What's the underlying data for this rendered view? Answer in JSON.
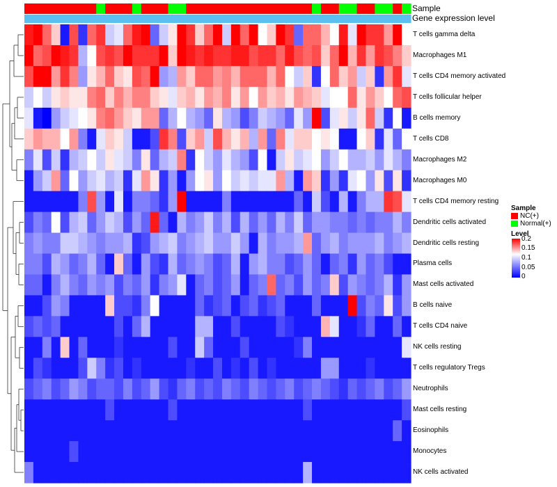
{
  "chart_data": {
    "type": "heatmap",
    "title": "",
    "annotation_titles": [
      "Sample",
      "Gene expression level"
    ],
    "rows": [
      "T cells gamma delta",
      "Macrophages M1",
      "T cells CD4 memory activated",
      "T cells follicular helper",
      "B cells memory",
      "T cells CD8",
      "Macrophages M2",
      "Macrophages M0",
      "T cells CD4 memory resting",
      "Dendritic cells activated",
      "Dendritic cells resting",
      "Plasma cells",
      "Mast cells activated",
      "B cells naive",
      "T cells CD4 naive",
      "NK cells resting",
      "T cells regulatory  Tregs",
      "Neutrophils",
      "Mast cells resting",
      "Eosinophils",
      "Monocytes",
      "NK cells activated"
    ],
    "sample_groups": [
      "NC",
      "NC",
      "NC",
      "NC",
      "NC",
      "NC",
      "NC",
      "NC",
      "Normal",
      "NC",
      "NC",
      "NC",
      "Normal",
      "NC",
      "NC",
      "NC",
      "Normal",
      "Normal",
      "NC",
      "NC",
      "NC",
      "NC",
      "NC",
      "NC",
      "NC",
      "NC",
      "NC",
      "NC",
      "NC",
      "NC",
      "NC",
      "NC",
      "Normal",
      "NC",
      "NC",
      "Normal",
      "Normal",
      "NC",
      "NC",
      "Normal",
      "Normal",
      "NC",
      "Normal"
    ],
    "color_scale": {
      "min": 0,
      "max": 0.2,
      "colors": [
        "#0000ff",
        "#ffffff",
        "#ff0000"
      ]
    },
    "values": [
      [
        0.19,
        0.2,
        0.16,
        0.12,
        0.01,
        0.17,
        0.02,
        0.16,
        0.18,
        0.08,
        0.09,
        0.16,
        0.19,
        0.2,
        0.04,
        0.08,
        0.11,
        0.2,
        0.18,
        0.12,
        0.16,
        0.2,
        0.08,
        0.2,
        0.16,
        0.2,
        0.1,
        0.12,
        0.2,
        0.18,
        0.04,
        0.16,
        0.16,
        0.13,
        0.1,
        0.19,
        0.09,
        0.2,
        0.18,
        0.18,
        0.14,
        0.2,
        0.1
      ],
      [
        0.2,
        0.16,
        0.17,
        0.2,
        0.19,
        0.18,
        0.07,
        0.1,
        0.17,
        0.18,
        0.17,
        0.2,
        0.18,
        0.18,
        0.18,
        0.2,
        0.12,
        0.2,
        0.19,
        0.18,
        0.19,
        0.18,
        0.18,
        0.19,
        0.19,
        0.17,
        0.18,
        0.18,
        0.16,
        0.19,
        0.17,
        0.16,
        0.17,
        0.12,
        0.16,
        0.2,
        0.13,
        0.18,
        0.14,
        0.18,
        0.17,
        0.15,
        0.12
      ],
      [
        0.17,
        0.2,
        0.2,
        0.14,
        0.18,
        0.15,
        0.06,
        0.11,
        0.13,
        0.16,
        0.12,
        0.11,
        0.17,
        0.16,
        0.2,
        0.06,
        0.07,
        0.14,
        0.12,
        0.16,
        0.16,
        0.14,
        0.15,
        0.13,
        0.16,
        0.16,
        0.16,
        0.13,
        0.16,
        0.1,
        0.08,
        0.12,
        0.02,
        0.1,
        0.16,
        0.12,
        0.14,
        0.08,
        0.12,
        0.02,
        0.14,
        0.18,
        0.09
      ],
      [
        0.08,
        0.1,
        0.08,
        0.11,
        0.12,
        0.11,
        0.11,
        0.15,
        0.16,
        0.12,
        0.15,
        0.13,
        0.15,
        0.15,
        0.12,
        0.11,
        0.09,
        0.12,
        0.13,
        0.11,
        0.14,
        0.13,
        0.15,
        0.11,
        0.14,
        0.1,
        0.14,
        0.12,
        0.13,
        0.11,
        0.14,
        0.13,
        0.12,
        0.09,
        0.1,
        0.1,
        0.16,
        0.11,
        0.14,
        0.12,
        0.1,
        0.16,
        0.17
      ],
      [
        0.09,
        0.01,
        0.0,
        0.06,
        0.08,
        0.09,
        0.1,
        0.11,
        0.15,
        0.16,
        0.14,
        0.12,
        0.11,
        0.14,
        0.14,
        0.04,
        0.07,
        0.1,
        0.07,
        0.06,
        0.04,
        0.11,
        0.07,
        0.06,
        0.03,
        0.05,
        0.08,
        0.07,
        0.06,
        0.04,
        0.09,
        0.06,
        0.2,
        0.03,
        0.09,
        0.11,
        0.08,
        0.11,
        0.16,
        0.08,
        0.02,
        0.1,
        0.01
      ],
      [
        0.12,
        0.14,
        0.13,
        0.13,
        0.1,
        0.14,
        0.05,
        0.01,
        0.09,
        0.12,
        0.11,
        0.08,
        0.01,
        0.01,
        0.03,
        0.18,
        0.15,
        0.03,
        0.12,
        0.14,
        0.08,
        0.17,
        0.13,
        0.11,
        0.13,
        0.07,
        0.14,
        0.04,
        0.15,
        0.09,
        0.12,
        0.12,
        0.1,
        0.11,
        0.1,
        0.01,
        0.01,
        0.1,
        0.12,
        0.02,
        0.09,
        0.04,
        0.1
      ],
      [
        0.05,
        0.09,
        0.03,
        0.08,
        0.02,
        0.07,
        0.08,
        0.1,
        0.08,
        0.11,
        0.09,
        0.08,
        0.05,
        0.11,
        0.04,
        0.07,
        0.08,
        0.15,
        0.02,
        0.1,
        0.08,
        0.06,
        0.09,
        0.07,
        0.06,
        0.03,
        0.1,
        0.01,
        0.08,
        0.11,
        0.08,
        0.09,
        0.1,
        0.06,
        0.08,
        0.1,
        0.07,
        0.07,
        0.08,
        0.06,
        0.09,
        0.07,
        0.05
      ],
      [
        0.01,
        0.06,
        0.08,
        0.14,
        0.04,
        0.1,
        0.06,
        0.08,
        0.09,
        0.07,
        0.08,
        0.02,
        0.09,
        0.14,
        0.11,
        0.02,
        0.06,
        0.01,
        0.06,
        0.1,
        0.11,
        0.06,
        0.1,
        0.08,
        0.09,
        0.08,
        0.09,
        0.09,
        0.14,
        0.07,
        0.01,
        0.14,
        0.12,
        0.02,
        0.06,
        0.02,
        0.09,
        0.1,
        0.06,
        0.11,
        0.03,
        0.11,
        0.02
      ],
      [
        0.01,
        0.01,
        0.01,
        0.01,
        0.01,
        0.01,
        0.05,
        0.17,
        0.06,
        0.01,
        0.09,
        0.01,
        0.05,
        0.05,
        0.04,
        0.02,
        0.06,
        0.2,
        0.01,
        0.01,
        0.01,
        0.01,
        0.05,
        0.01,
        0.01,
        0.01,
        0.01,
        0.01,
        0.01,
        0.01,
        0.04,
        0.01,
        0.08,
        0.03,
        0.01,
        0.07,
        0.01,
        0.05,
        0.07,
        0.07,
        0.18,
        0.17,
        0.09
      ],
      [
        0.03,
        0.05,
        0.04,
        0.1,
        0.03,
        0.07,
        0.08,
        0.04,
        0.06,
        0.08,
        0.07,
        0.03,
        0.06,
        0.04,
        0.19,
        0.04,
        0.01,
        0.07,
        0.05,
        0.06,
        0.08,
        0.05,
        0.07,
        0.03,
        0.07,
        0.04,
        0.06,
        0.04,
        0.07,
        0.05,
        0.08,
        0.04,
        0.06,
        0.06,
        0.05,
        0.05,
        0.04,
        0.05,
        0.04,
        0.05,
        0.05,
        0.07,
        0.05
      ],
      [
        0.05,
        0.06,
        0.05,
        0.05,
        0.08,
        0.08,
        0.07,
        0.06,
        0.05,
        0.06,
        0.06,
        0.07,
        0.02,
        0.03,
        0.06,
        0.07,
        0.08,
        0.05,
        0.06,
        0.07,
        0.08,
        0.06,
        0.06,
        0.08,
        0.06,
        0.01,
        0.07,
        0.05,
        0.06,
        0.06,
        0.07,
        0.14,
        0.04,
        0.06,
        0.07,
        0.05,
        0.06,
        0.06,
        0.06,
        0.07,
        0.05,
        0.06,
        0.07
      ],
      [
        0.05,
        0.05,
        0.03,
        0.07,
        0.06,
        0.04,
        0.05,
        0.07,
        0.04,
        0.01,
        0.12,
        0.04,
        0.01,
        0.06,
        0.03,
        0.02,
        0.07,
        0.04,
        0.05,
        0.06,
        0.05,
        0.03,
        0.04,
        0.07,
        0.01,
        0.06,
        0.07,
        0.05,
        0.05,
        0.03,
        0.04,
        0.06,
        0.04,
        0.01,
        0.04,
        0.05,
        0.02,
        0.06,
        0.04,
        0.05,
        0.03,
        0.01,
        0.01
      ],
      [
        0.04,
        0.04,
        0.01,
        0.05,
        0.07,
        0.05,
        0.04,
        0.06,
        0.05,
        0.06,
        0.03,
        0.05,
        0.04,
        0.06,
        0.02,
        0.05,
        0.06,
        0.09,
        0.01,
        0.04,
        0.05,
        0.03,
        0.04,
        0.06,
        0.01,
        0.04,
        0.05,
        0.16,
        0.04,
        0.05,
        0.03,
        0.06,
        0.04,
        0.05,
        0.12,
        0.03,
        0.06,
        0.05,
        0.04,
        0.05,
        0.07,
        0.02,
        0.06
      ],
      [
        0.01,
        0.01,
        0.03,
        0.06,
        0.05,
        0.01,
        0.01,
        0.01,
        0.01,
        0.12,
        0.03,
        0.03,
        0.02,
        0.05,
        0.1,
        0.01,
        0.01,
        0.01,
        0.01,
        0.04,
        0.02,
        0.03,
        0.04,
        0.01,
        0.03,
        0.04,
        0.02,
        0.03,
        0.04,
        0.01,
        0.01,
        0.01,
        0.04,
        0.01,
        0.01,
        0.01,
        0.2,
        0.03,
        0.05,
        0.04,
        0.11,
        0.03,
        0.06
      ],
      [
        0.03,
        0.04,
        0.03,
        0.04,
        0.01,
        0.01,
        0.01,
        0.01,
        0.01,
        0.01,
        0.03,
        0.01,
        0.04,
        0.07,
        0.01,
        0.01,
        0.01,
        0.01,
        0.01,
        0.07,
        0.07,
        0.01,
        0.01,
        0.03,
        0.01,
        0.01,
        0.01,
        0.01,
        0.03,
        0.02,
        0.01,
        0.01,
        0.01,
        0.13,
        0.09,
        0.01,
        0.01,
        0.02,
        0.04,
        0.01,
        0.01,
        0.04,
        0.01
      ],
      [
        0.01,
        0.01,
        0.05,
        0.01,
        0.12,
        0.01,
        0.04,
        0.01,
        0.01,
        0.01,
        0.02,
        0.01,
        0.01,
        0.01,
        0.01,
        0.01,
        0.03,
        0.01,
        0.01,
        0.08,
        0.04,
        0.01,
        0.01,
        0.01,
        0.03,
        0.01,
        0.01,
        0.01,
        0.01,
        0.01,
        0.02,
        0.05,
        0.01,
        0.01,
        0.01,
        0.01,
        0.01,
        0.01,
        0.01,
        0.01,
        0.01,
        0.01,
        0.09
      ],
      [
        0.01,
        0.03,
        0.02,
        0.01,
        0.01,
        0.01,
        0.03,
        0.08,
        0.05,
        0.02,
        0.03,
        0.01,
        0.02,
        0.01,
        0.01,
        0.01,
        0.01,
        0.01,
        0.02,
        0.01,
        0.01,
        0.03,
        0.01,
        0.02,
        0.01,
        0.03,
        0.01,
        0.02,
        0.01,
        0.01,
        0.01,
        0.01,
        0.01,
        0.06,
        0.06,
        0.01,
        0.01,
        0.01,
        0.02,
        0.01,
        0.01,
        0.01,
        0.01
      ],
      [
        0.03,
        0.04,
        0.05,
        0.03,
        0.04,
        0.06,
        0.05,
        0.03,
        0.04,
        0.04,
        0.03,
        0.05,
        0.03,
        0.04,
        0.06,
        0.03,
        0.02,
        0.04,
        0.05,
        0.03,
        0.04,
        0.03,
        0.05,
        0.04,
        0.03,
        0.05,
        0.04,
        0.03,
        0.04,
        0.05,
        0.03,
        0.04,
        0.05,
        0.04,
        0.03,
        0.02,
        0.04,
        0.03,
        0.04,
        0.05,
        0.03,
        0.04,
        0.06
      ],
      [
        0.01,
        0.01,
        0.01,
        0.01,
        0.01,
        0.01,
        0.01,
        0.01,
        0.01,
        0.03,
        0.01,
        0.01,
        0.01,
        0.01,
        0.01,
        0.01,
        0.03,
        0.01,
        0.01,
        0.01,
        0.01,
        0.01,
        0.01,
        0.01,
        0.01,
        0.01,
        0.01,
        0.01,
        0.01,
        0.01,
        0.01,
        0.03,
        0.01,
        0.01,
        0.01,
        0.01,
        0.01,
        0.01,
        0.01,
        0.01,
        0.01,
        0.01,
        0.03
      ],
      [
        0.01,
        0.01,
        0.01,
        0.01,
        0.01,
        0.01,
        0.01,
        0.01,
        0.01,
        0.01,
        0.01,
        0.01,
        0.01,
        0.01,
        0.01,
        0.01,
        0.01,
        0.01,
        0.01,
        0.01,
        0.01,
        0.01,
        0.01,
        0.01,
        0.01,
        0.01,
        0.01,
        0.01,
        0.01,
        0.01,
        0.01,
        0.01,
        0.01,
        0.01,
        0.01,
        0.01,
        0.01,
        0.01,
        0.01,
        0.01,
        0.01,
        0.04,
        0.01
      ],
      [
        0.01,
        0.01,
        0.01,
        0.01,
        0.01,
        0.03,
        0.01,
        0.01,
        0.01,
        0.01,
        0.01,
        0.01,
        0.01,
        0.01,
        0.01,
        0.01,
        0.01,
        0.01,
        0.01,
        0.01,
        0.01,
        0.01,
        0.01,
        0.01,
        0.01,
        0.01,
        0.01,
        0.01,
        0.01,
        0.01,
        0.01,
        0.01,
        0.01,
        0.01,
        0.01,
        0.01,
        0.01,
        0.01,
        0.01,
        0.01,
        0.01,
        0.01,
        0.01
      ],
      [
        0.05,
        0.01,
        0.01,
        0.01,
        0.01,
        0.01,
        0.01,
        0.01,
        0.01,
        0.01,
        0.01,
        0.01,
        0.01,
        0.01,
        0.01,
        0.01,
        0.01,
        0.01,
        0.01,
        0.01,
        0.01,
        0.01,
        0.01,
        0.01,
        0.01,
        0.01,
        0.01,
        0.01,
        0.01,
        0.01,
        0.01,
        0.07,
        0.01,
        0.01,
        0.01,
        0.01,
        0.01,
        0.01,
        0.01,
        0.01,
        0.01,
        0.01,
        0.01
      ]
    ],
    "legend": {
      "sample": {
        "title": "Sample",
        "items": [
          {
            "label": "NC(+)",
            "color": "#ff0000"
          },
          {
            "label": "Normal(+)",
            "color": "#00ff00"
          }
        ]
      },
      "level": {
        "title": "Level",
        "ticks": [
          {
            "label": "0.2",
            "value": 0.2
          },
          {
            "label": "0.15",
            "value": 0.15
          },
          {
            "label": "0.1",
            "value": 0.1
          },
          {
            "label": "0.05",
            "value": 0.05
          },
          {
            "label": "0",
            "value": 0
          }
        ]
      }
    },
    "annotation_colors": {
      "NC": "#ff0000",
      "Normal": "#00ff00",
      "gene_expression": "#5bc0f0"
    }
  }
}
